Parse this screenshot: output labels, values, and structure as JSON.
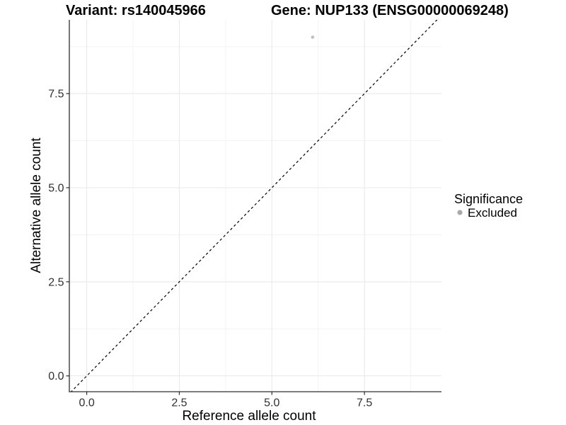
{
  "title": {
    "left": "Variant: rs140045966",
    "right": "Gene: NUP133 (ENSG00000069248)"
  },
  "chart_data": {
    "type": "scatter",
    "xlabel": "Reference allele count",
    "ylabel": "Alternative allele count",
    "xlim": [
      -0.47,
      9.58
    ],
    "ylim": [
      -0.42,
      9.46
    ],
    "xticks": {
      "values": [
        0,
        2.5,
        5,
        7.5
      ],
      "labels": [
        "0.0",
        "2.5",
        "5.0",
        "7.5"
      ]
    },
    "yticks": {
      "values": [
        0,
        2.5,
        5,
        7.5
      ],
      "labels": [
        "0.0",
        "2.5",
        "5.0",
        "7.5"
      ]
    },
    "minor_breaks_x": [
      1.25,
      3.75,
      6.25,
      8.75
    ],
    "minor_breaks_y": [
      1.25,
      3.75,
      6.25,
      8.75
    ],
    "grid": "major+minor",
    "series": [
      {
        "name": "Excluded",
        "color": "#c0c0c0",
        "point_radius": 2.3,
        "points": [
          {
            "x": 6.1,
            "y": 9.0
          }
        ]
      }
    ],
    "reference_line": {
      "type": "identity",
      "slope": 1,
      "intercept": 0,
      "style": "dashed",
      "color": "#000000"
    },
    "legend": {
      "title": "Significance",
      "position": "right",
      "items": [
        {
          "label": "Excluded",
          "color": "#a9a9a9"
        }
      ]
    }
  },
  "colors": {
    "background": "#ffffff",
    "grid_major": "#e8e8e8",
    "grid_minor": "#f3f3f3",
    "axis_line": "#2e2e2e",
    "tick_text": "#303030"
  }
}
